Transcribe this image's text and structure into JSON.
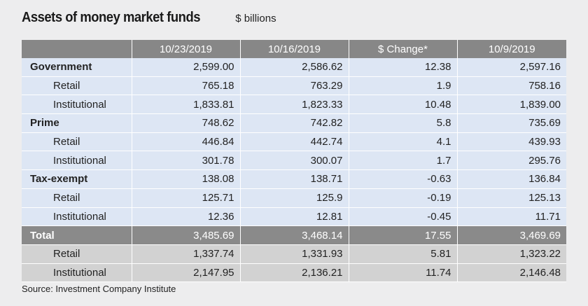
{
  "title": "Assets of money market funds",
  "unit": "$ billions",
  "columns": [
    "",
    "10/23/2019",
    "10/16/2019",
    "$ Change*",
    "10/9/2019"
  ],
  "rows": [
    {
      "label": "Government",
      "values": [
        "2,599.00",
        "2,586.62",
        "12.38",
        "2,597.16"
      ]
    },
    {
      "label": "Retail",
      "values": [
        "765.18",
        "763.29",
        "1.9",
        "758.16"
      ]
    },
    {
      "label": "Institutional",
      "values": [
        "1,833.81",
        "1,823.33",
        "10.48",
        "1,839.00"
      ]
    },
    {
      "label": "Prime",
      "values": [
        "748.62",
        "742.82",
        "5.8",
        "735.69"
      ]
    },
    {
      "label": "Retail",
      "values": [
        "446.84",
        "442.74",
        "4.1",
        "439.93"
      ]
    },
    {
      "label": "Institutional",
      "values": [
        "301.78",
        "300.07",
        "1.7",
        "295.76"
      ]
    },
    {
      "label": "Tax-exempt",
      "values": [
        "138.08",
        "138.71",
        "-0.63",
        "136.84"
      ]
    },
    {
      "label": "Retail",
      "values": [
        "125.71",
        "125.9",
        "-0.19",
        "125.13"
      ]
    },
    {
      "label": "Institutional",
      "values": [
        "12.36",
        "12.81",
        "-0.45",
        "11.71"
      ]
    },
    {
      "label": "Total",
      "values": [
        "3,485.69",
        "3,468.14",
        "17.55",
        "3,469.69"
      ]
    },
    {
      "label": "Retail",
      "values": [
        "1,337.74",
        "1,331.93",
        "5.81",
        "1,323.22"
      ]
    },
    {
      "label": "Institutional",
      "values": [
        "2,147.95",
        "2,136.21",
        "11.74",
        "2,146.48"
      ]
    }
  ],
  "source": "Source: Investment Company Institute"
}
